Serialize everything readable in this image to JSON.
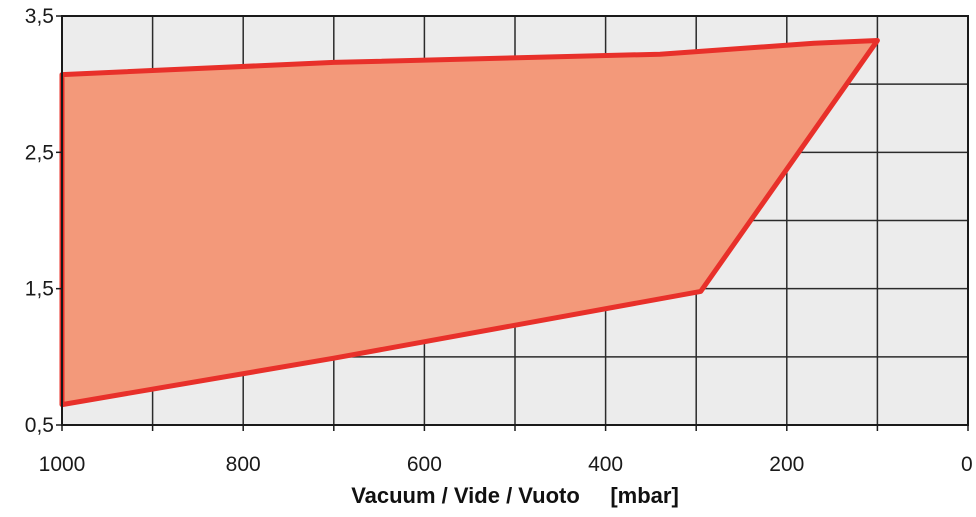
{
  "chart_data": {
    "type": "area",
    "title": "",
    "xlabel": "Vacuum / Vide / Vuoto     [mbar]",
    "ylabel": "",
    "xlim": [
      1000,
      0
    ],
    "ylim": [
      0.5,
      3.5
    ],
    "x_reversed": true,
    "grid": true,
    "x_ticks": [
      1000,
      900,
      800,
      700,
      600,
      500,
      400,
      300,
      200,
      100,
      0
    ],
    "y_ticks": [
      0.5,
      1.0,
      1.5,
      2.0,
      2.5,
      3.0,
      3.5
    ],
    "x_tick_labels": [
      {
        "value": 1000,
        "label": "1000"
      },
      {
        "value": 800,
        "label": "800"
      },
      {
        "value": 600,
        "label": "600"
      },
      {
        "value": 400,
        "label": "400"
      },
      {
        "value": 200,
        "label": "200"
      },
      {
        "value": 0,
        "label": "0"
      }
    ],
    "y_tick_labels": [
      {
        "value": 0.5,
        "label": "0,5"
      },
      {
        "value": 1.5,
        "label": "1,5"
      },
      {
        "value": 2.5,
        "label": "2,5"
      },
      {
        "value": 3.5,
        "label": "3,5"
      }
    ],
    "series": [
      {
        "x": [
          1000,
          700,
          340,
          170,
          100,
          295,
          700,
          1000
        ],
        "y": [
          3.07,
          3.16,
          3.22,
          3.3,
          3.32,
          1.48,
          0.99,
          0.65
        ],
        "fill": "#f3997a",
        "stroke": "#e8302a"
      }
    ]
  }
}
